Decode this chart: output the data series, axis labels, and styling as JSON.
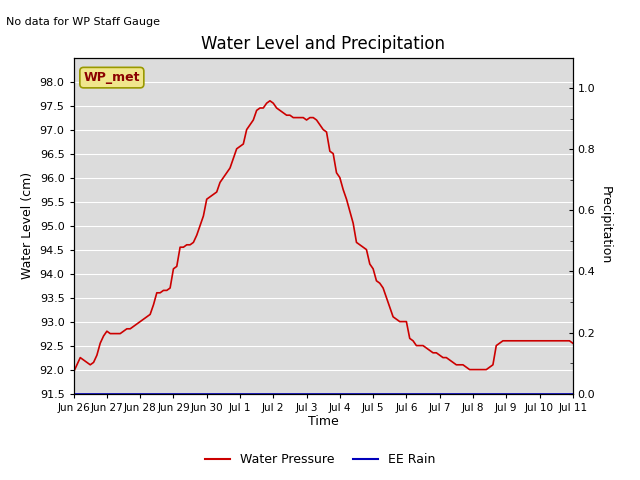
{
  "title": "Water Level and Precipitation",
  "top_left_text": "No data for WP Staff Gauge",
  "ylabel_left": "Water Level (cm)",
  "ylabel_right": "Precipitation",
  "xlabel": "Time",
  "annotation_box": "WP_met",
  "ylim_left": [
    91.5,
    98.5
  ],
  "ylim_right": [
    0.0,
    1.1
  ],
  "yticks_left": [
    91.5,
    92.0,
    92.5,
    93.0,
    93.5,
    94.0,
    94.5,
    95.0,
    95.5,
    96.0,
    96.5,
    97.0,
    97.5,
    98.0
  ],
  "yticks_right": [
    0.0,
    0.2,
    0.4,
    0.6,
    0.8,
    1.0
  ],
  "bg_color": "#dcdcdc",
  "line_color_water": "#cc0000",
  "line_color_rain": "#0000bb",
  "legend_water": "Water Pressure",
  "legend_rain": "EE Rain",
  "x_dates": [
    "Jun 26",
    "Jun 27",
    "Jun 28",
    "Jun 29",
    "Jun 30",
    "Jul 1",
    "Jul 2",
    "Jul 3",
    "Jul 4",
    "Jul 5",
    "Jul 6",
    "Jul 7",
    "Jul 8",
    "Jul 9",
    "Jul 10",
    "Jul 11"
  ],
  "water_x": [
    0.0,
    0.1,
    0.2,
    0.3,
    0.4,
    0.5,
    0.6,
    0.7,
    0.8,
    0.9,
    1.0,
    1.1,
    1.2,
    1.3,
    1.4,
    1.5,
    1.6,
    1.7,
    1.8,
    1.9,
    2.0,
    2.1,
    2.2,
    2.3,
    2.4,
    2.5,
    2.6,
    2.7,
    2.8,
    2.9,
    3.0,
    3.1,
    3.2,
    3.3,
    3.4,
    3.5,
    3.6,
    3.7,
    3.8,
    3.9,
    4.0,
    4.1,
    4.2,
    4.3,
    4.4,
    4.5,
    4.6,
    4.7,
    4.8,
    4.9,
    5.0,
    5.1,
    5.2,
    5.3,
    5.4,
    5.5,
    5.6,
    5.7,
    5.8,
    5.9,
    6.0,
    6.1,
    6.2,
    6.3,
    6.4,
    6.5,
    6.6,
    6.7,
    6.8,
    6.9,
    7.0,
    7.1,
    7.2,
    7.3,
    7.4,
    7.5,
    7.6,
    7.7,
    7.8,
    7.9,
    8.0,
    8.1,
    8.2,
    8.3,
    8.4,
    8.5,
    8.6,
    8.7,
    8.8,
    8.9,
    9.0,
    9.1,
    9.2,
    9.3,
    9.4,
    9.5,
    9.6,
    9.7,
    9.8,
    9.9,
    10.0,
    10.1,
    10.2,
    10.3,
    10.4,
    10.5,
    10.6,
    10.7,
    10.8,
    10.9,
    11.0,
    11.1,
    11.2,
    11.3,
    11.4,
    11.5,
    11.6,
    11.7,
    11.8,
    11.9,
    12.0,
    12.1,
    12.2,
    12.3,
    12.4,
    12.5,
    12.6,
    12.7,
    12.8,
    12.9,
    13.0,
    13.1,
    13.2,
    13.3,
    13.4,
    13.5,
    13.6,
    13.7,
    13.8,
    13.9,
    14.0,
    14.1,
    14.2,
    14.3,
    14.4,
    14.5,
    14.6,
    14.7,
    14.8,
    14.9,
    15.0
  ],
  "water_y": [
    91.95,
    92.1,
    92.25,
    92.2,
    92.15,
    92.1,
    92.15,
    92.3,
    92.55,
    92.7,
    92.8,
    92.75,
    92.75,
    92.75,
    92.75,
    92.8,
    92.85,
    92.85,
    92.9,
    92.95,
    93.0,
    93.05,
    93.1,
    93.15,
    93.35,
    93.6,
    93.6,
    93.65,
    93.65,
    93.7,
    94.1,
    94.15,
    94.55,
    94.55,
    94.6,
    94.6,
    94.65,
    94.8,
    95.0,
    95.2,
    95.55,
    95.6,
    95.65,
    95.7,
    95.9,
    96.0,
    96.1,
    96.2,
    96.4,
    96.6,
    96.65,
    96.7,
    97.0,
    97.1,
    97.2,
    97.4,
    97.45,
    97.45,
    97.55,
    97.6,
    97.55,
    97.45,
    97.4,
    97.35,
    97.3,
    97.3,
    97.25,
    97.25,
    97.25,
    97.25,
    97.2,
    97.25,
    97.25,
    97.2,
    97.1,
    97.0,
    96.95,
    96.55,
    96.5,
    96.1,
    96.0,
    95.75,
    95.55,
    95.3,
    95.05,
    94.65,
    94.6,
    94.55,
    94.5,
    94.2,
    94.1,
    93.85,
    93.8,
    93.7,
    93.5,
    93.3,
    93.1,
    93.05,
    93.0,
    93.0,
    93.0,
    92.65,
    92.6,
    92.5,
    92.5,
    92.5,
    92.45,
    92.4,
    92.35,
    92.35,
    92.3,
    92.25,
    92.25,
    92.2,
    92.15,
    92.1,
    92.1,
    92.1,
    92.05,
    92.0,
    92.0,
    92.0,
    92.0,
    92.0,
    92.0,
    92.05,
    92.1,
    92.5,
    92.55,
    92.6,
    92.6,
    92.6,
    92.6,
    92.6,
    92.6,
    92.6,
    92.6,
    92.6,
    92.6,
    92.6,
    92.6,
    92.6,
    92.6,
    92.6,
    92.6,
    92.6,
    92.6,
    92.6,
    92.6,
    92.6,
    92.55
  ]
}
